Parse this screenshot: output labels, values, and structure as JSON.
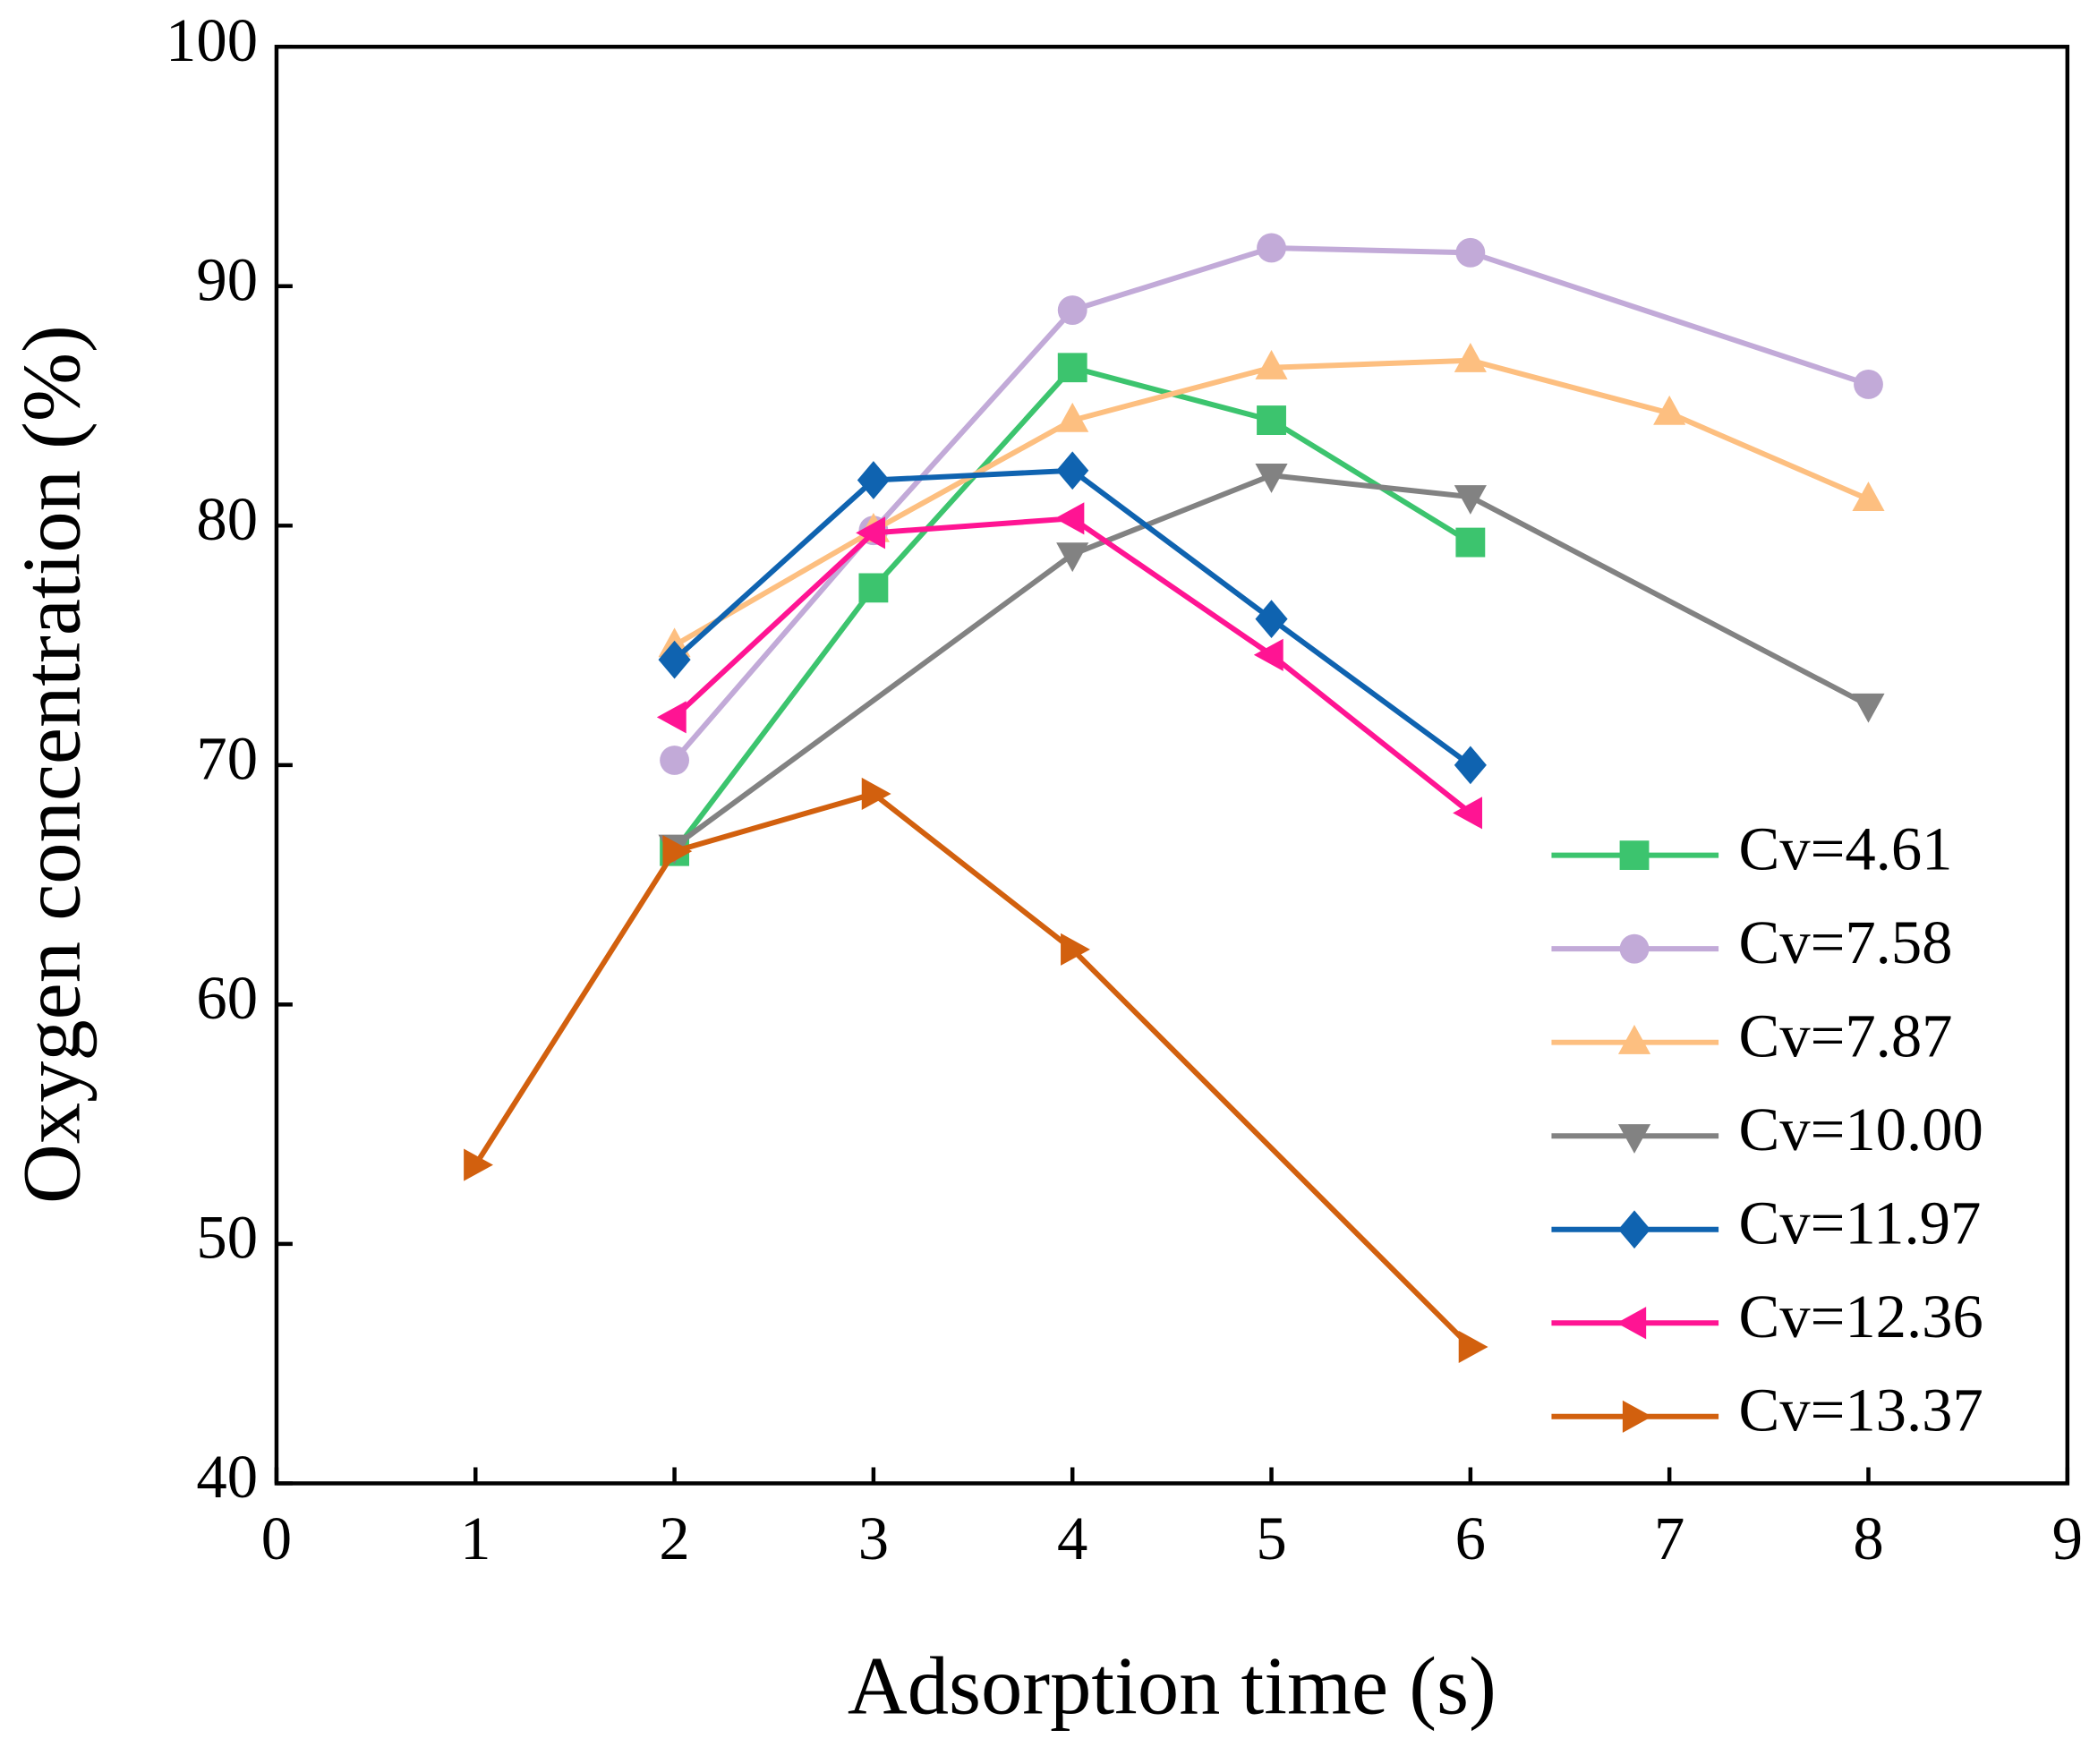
{
  "chart_data": {
    "type": "line",
    "x_label": "Adsorption time (s)",
    "y_label": "Oxygen concentration (%)",
    "xlim": [
      0,
      9
    ],
    "xticks": [
      0,
      1,
      2,
      3,
      4,
      5,
      6,
      7,
      8,
      9
    ],
    "ylim": [
      40,
      100
    ],
    "yticks": [
      40,
      50,
      60,
      70,
      80,
      90,
      100
    ],
    "grid": false,
    "legend": "lower right",
    "series": [
      {
        "name": "Cv=4.61",
        "color": "#3cc46e",
        "marker": "square",
        "x": [
          2,
          3,
          4,
          5,
          6
        ],
        "values": [
          66.4,
          77.4,
          86.6,
          84.4,
          79.3
        ]
      },
      {
        "name": "Cv=7.58",
        "color": "#c2aad8",
        "marker": "circle",
        "x": [
          2,
          3,
          4,
          5,
          6,
          8
        ],
        "values": [
          70.2,
          79.8,
          89.0,
          91.6,
          91.4,
          85.9
        ]
      },
      {
        "name": "Cv=7.87",
        "color": "#fdbf80",
        "marker": "triangle-up",
        "x": [
          2,
          3,
          4,
          5,
          6,
          7,
          8
        ],
        "values": [
          75.0,
          79.8,
          84.4,
          86.6,
          86.9,
          84.7,
          81.1
        ]
      },
      {
        "name": "Cv=10.00",
        "color": "#828282",
        "marker": "triangle-down",
        "x": [
          2,
          4,
          5,
          6,
          8
        ],
        "values": [
          66.6,
          78.8,
          82.1,
          81.2,
          72.5
        ]
      },
      {
        "name": "Cv=11.97",
        "color": "#0f63b0",
        "marker": "diamond",
        "x": [
          2,
          3,
          4,
          5,
          6
        ],
        "values": [
          74.4,
          81.9,
          82.3,
          76.1,
          70.0
        ]
      },
      {
        "name": "Cv=12.36",
        "color": "#ff1493",
        "marker": "triangle-left",
        "x": [
          2,
          3,
          4,
          5,
          6
        ],
        "values": [
          72.0,
          79.7,
          80.3,
          74.6,
          68.0
        ]
      },
      {
        "name": "Cv=13.37",
        "color": "#d2600e",
        "marker": "triangle-right",
        "x": [
          1,
          2,
          3,
          4,
          6
        ],
        "values": [
          53.3,
          66.4,
          68.8,
          62.3,
          45.7
        ]
      }
    ]
  }
}
